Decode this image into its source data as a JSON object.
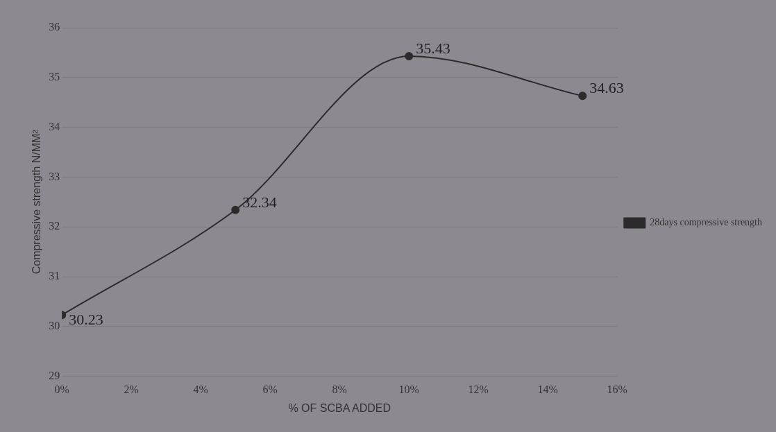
{
  "chart_data": {
    "type": "line",
    "xlabel": "% OF SCBA ADDED",
    "ylabel": "Compressive strength N/MM²",
    "x": [
      0,
      5,
      10,
      15
    ],
    "series": [
      {
        "name": "28days compressive strength",
        "color": "#2b2b2b",
        "values": [
          30.23,
          32.34,
          35.43,
          34.63
        ]
      }
    ],
    "xlim": [
      0,
      16
    ],
    "xticks": [
      {
        "value": 0,
        "label": "0%"
      },
      {
        "value": 2,
        "label": "2%"
      },
      {
        "value": 4,
        "label": "4%"
      },
      {
        "value": 6,
        "label": "6%"
      },
      {
        "value": 8,
        "label": "8%"
      },
      {
        "value": 10,
        "label": "10%"
      },
      {
        "value": 12,
        "label": "12%"
      },
      {
        "value": 14,
        "label": "14%"
      },
      {
        "value": 16,
        "label": "16%"
      }
    ],
    "ylim": [
      29,
      36
    ],
    "yticks": [
      29,
      30,
      31,
      32,
      33,
      34,
      35,
      36
    ],
    "grid": "y",
    "legend": "right",
    "marker": "circle",
    "data_labels": true
  }
}
